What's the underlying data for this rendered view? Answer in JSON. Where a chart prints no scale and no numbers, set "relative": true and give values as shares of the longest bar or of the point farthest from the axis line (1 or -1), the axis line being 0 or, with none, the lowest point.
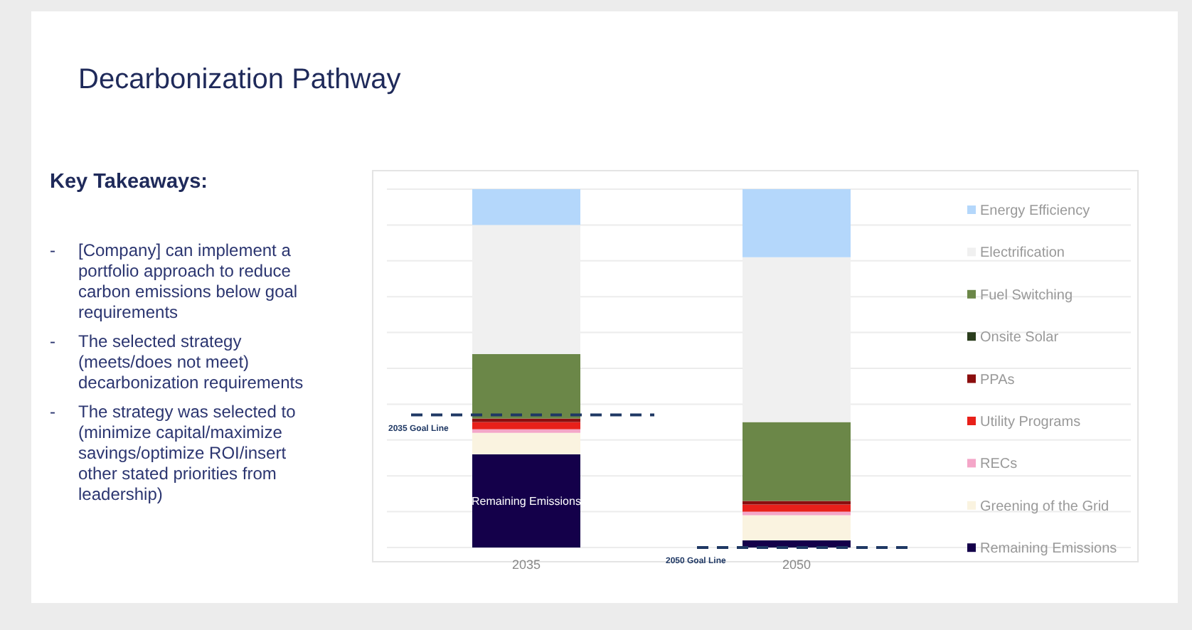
{
  "chart_data": {
    "type": "bar",
    "title": "Decarbonization Pathway",
    "categories": [
      "2035",
      "2050"
    ],
    "stacked": true,
    "relative": true,
    "grid": true,
    "legend": "right",
    "series": [
      {
        "name": "Remaining Emissions",
        "color": "#14004a",
        "values": [
          0.26,
          0.02
        ]
      },
      {
        "name": "Greening of the Grid",
        "color": "#faf3e0",
        "values": [
          0.06,
          0.07
        ]
      },
      {
        "name": "RECs",
        "color": "#f4a6c8",
        "values": [
          0.01,
          0.01
        ]
      },
      {
        "name": "Utility Programs",
        "color": "#e8201a",
        "values": [
          0.02,
          0.02
        ]
      },
      {
        "name": "PPAs",
        "color": "#8b0e0e",
        "values": [
          0.01,
          0.01
        ]
      },
      {
        "name": "Onsite Solar",
        "color": "#2a3d1d",
        "values": [
          0,
          0
        ]
      },
      {
        "name": "Fuel Switching",
        "color": "#6b8748",
        "values": [
          0.18,
          0.22
        ]
      },
      {
        "name": "Electrification",
        "color": "#f0f0f0",
        "values": [
          0.36,
          0.46
        ]
      },
      {
        "name": "Energy Efficiency",
        "color": "#b4d7fb",
        "values": [
          0.1,
          0.19
        ]
      }
    ],
    "ref_lines": [
      {
        "axis": "y",
        "value": 0.37,
        "label": "2035 Goal Line",
        "color": "#1f3864",
        "line_style": "dashed"
      },
      {
        "axis": "y",
        "value": 0,
        "label": "2050 Goal Line",
        "color": "#1f3864",
        "line_style": "dashed"
      }
    ],
    "annotations": [
      "Key Takeaways:",
      "- [Company] can implement a portfolio approach to reduce carbon emissions below goal requirements",
      "- The selected strategy (meets/does not meet) decarbonization requirements",
      "- The strategy was selected to (minimize capital/maximize savings/optimize ROI/insert other stated priorities from leadership)",
      "Remaining Emissions"
    ]
  }
}
